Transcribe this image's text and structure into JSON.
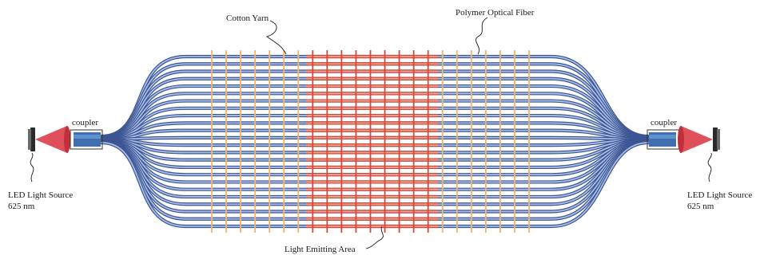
{
  "labels": {
    "cotton_yarn": "Cotton Yarn",
    "polymer_fiber": "Polymer Optical Fiber",
    "light_area": "Light Emitting Area",
    "coupler_left": "coupler",
    "coupler_right": "coupler",
    "led_left_line1": "LED Light Source",
    "led_left_line2": "625 nm",
    "led_right_line1": "LED Light Source",
    "led_right_line2": "625 nm"
  },
  "colors": {
    "fiber_outer": "#3d5592",
    "fiber_inner": "#a8bde6",
    "emit_outer": "#cf4a3a",
    "emit_inner": "#f4a28e",
    "yarn": "#f0b56a",
    "led_cone": "#e0505a",
    "led_cone_dark": "#c0303a",
    "coupler_fill": "#3f6fae",
    "coupler_light": "#5f92cc",
    "led_body": "#2a2a2a",
    "label_text": "#1a1a1a"
  },
  "counts": {
    "fibers": 24,
    "yarns": 23
  }
}
